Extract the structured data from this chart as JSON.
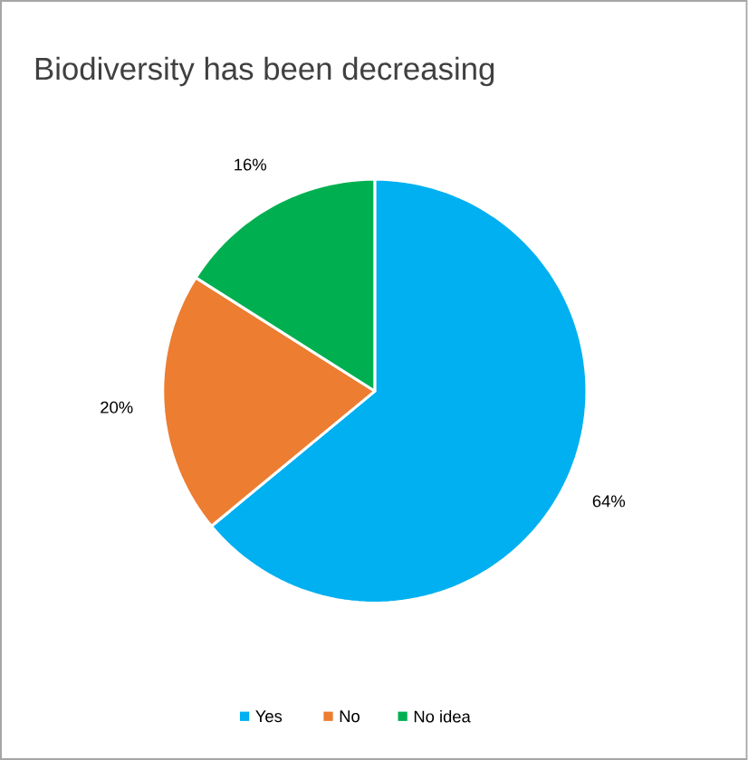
{
  "chart_data": {
    "type": "pie",
    "title": "Biodiversity has been decreasing",
    "categories": [
      "Yes",
      "No",
      "No idea"
    ],
    "values": [
      64,
      20,
      16
    ],
    "colors": [
      "#00b0f0",
      "#ed7d31",
      "#00b050"
    ],
    "value_labels": [
      "64%",
      "20%",
      "16%"
    ],
    "legend": "bottom"
  }
}
